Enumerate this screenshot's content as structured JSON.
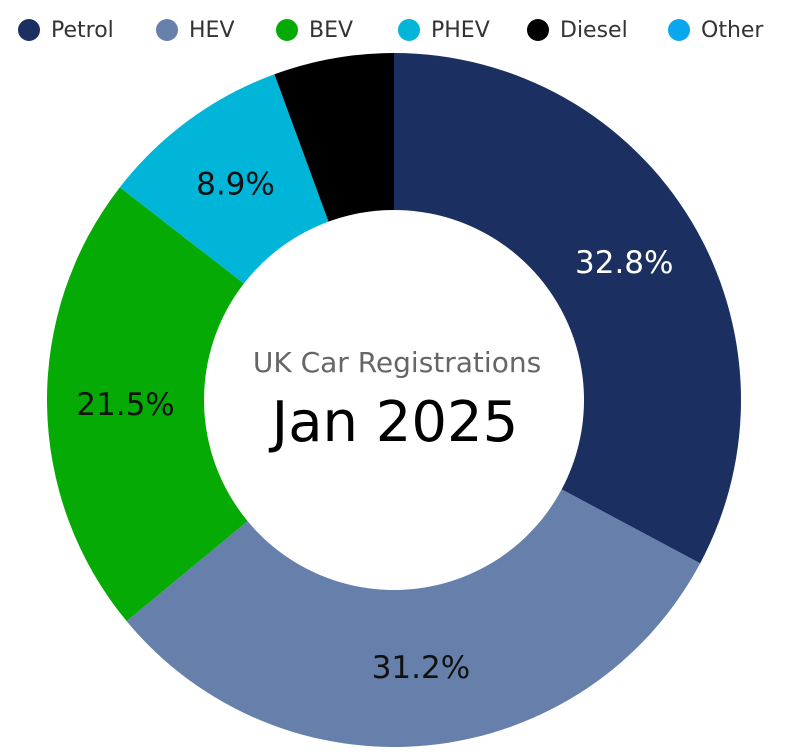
{
  "chart_data": {
    "type": "pie",
    "title": "Jan 2025",
    "subtitle": "UK Car Registrations",
    "donut": true,
    "legend_position": "top",
    "series": [
      {
        "name": "Petrol",
        "value": 32.8,
        "label": "32.8%",
        "color": "#1b3060",
        "label_color": "#ffffff"
      },
      {
        "name": "HEV",
        "value": 31.2,
        "label": "31.2%",
        "color": "#6680ab",
        "label_color": "#111111"
      },
      {
        "name": "BEV",
        "value": 21.5,
        "label": "21.5%",
        "color": "#05aa05",
        "label_color": "#111111"
      },
      {
        "name": "PHEV",
        "value": 8.9,
        "label": "8.9%",
        "color": "#00b5d8",
        "label_color": "#111111"
      },
      {
        "name": "Diesel",
        "value": 5.6,
        "label": "",
        "color": "#000000",
        "label_color": "#ffffff"
      },
      {
        "name": "Other",
        "value": 0.0,
        "label": "",
        "color": "#0aa7ef",
        "label_color": "#111111"
      }
    ]
  }
}
